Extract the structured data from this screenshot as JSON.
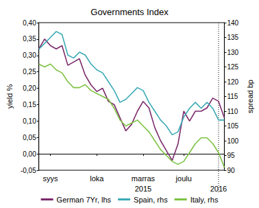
{
  "chart_data": {
    "type": "line",
    "title": "Governments Index",
    "y_label": "yield %",
    "y2_label": "spread bp",
    "categories": [
      null,
      null,
      "syys",
      null,
      null,
      null,
      null,
      null,
      null,
      null,
      "loka",
      null,
      null,
      null,
      null,
      null,
      null,
      null,
      "marras",
      null,
      null,
      null,
      null,
      null,
      null,
      "joulu",
      null,
      null,
      null,
      null,
      null,
      null,
      null
    ],
    "annotations": [
      {
        "text": "2015",
        "at": 18
      },
      {
        "text": "2016",
        "at": 31,
        "line_style": "dotted"
      }
    ],
    "series": [
      {
        "name": "German 7Yr, lhs",
        "color": "#7b2a6b",
        "axis": "y",
        "values": [
          0.32,
          0.35,
          0.33,
          0.32,
          0.33,
          0.27,
          0.28,
          0.29,
          0.24,
          0.21,
          0.19,
          0.2,
          0.16,
          0.15,
          0.11,
          0.07,
          0.09,
          0.13,
          0.16,
          0.14,
          0.08,
          0.04,
          0.01,
          -0.02,
          0.03,
          0.13,
          0.1,
          0.13,
          0.13,
          0.14,
          0.17,
          0.16,
          0.11
        ]
      },
      {
        "name": "Spain, rhs",
        "color": "#3aaab5",
        "axis": "y2",
        "values": [
          131,
          133,
          135,
          137,
          136,
          129,
          128,
          130,
          129,
          126,
          124,
          123,
          120,
          117,
          113,
          114,
          116,
          118,
          117,
          113,
          110,
          107,
          105,
          102,
          103,
          108,
          111,
          113,
          111,
          113,
          111,
          107,
          107
        ]
      },
      {
        "name": "Italy, rhs",
        "color": "#7dc242",
        "axis": "y2",
        "values": [
          126,
          125,
          126,
          124,
          123,
          120,
          118,
          118,
          119,
          117,
          116,
          115,
          114,
          111,
          107,
          105,
          106,
          107,
          105,
          103,
          100,
          97,
          95,
          93,
          92,
          93,
          96,
          99,
          101,
          101,
          99,
          96,
          91
        ]
      }
    ],
    "ylim": [
      -0.05,
      0.4
    ],
    "yticks": [
      {
        "value": -0.05,
        "label": "-0,05"
      },
      {
        "value": 0.0,
        "label": "0,00"
      },
      {
        "value": 0.05,
        "label": "0,05"
      },
      {
        "value": 0.1,
        "label": "0,10"
      },
      {
        "value": 0.15,
        "label": "0,15"
      },
      {
        "value": 0.2,
        "label": "0,20"
      },
      {
        "value": 0.25,
        "label": "0,25"
      },
      {
        "value": 0.3,
        "label": "0,30"
      },
      {
        "value": 0.35,
        "label": "0,35"
      },
      {
        "value": 0.4,
        "label": "0,40"
      }
    ],
    "y2lim": [
      90,
      140
    ],
    "y2ticks": [
      90,
      95,
      100,
      105,
      110,
      115,
      120,
      125,
      130,
      135,
      140
    ],
    "grid": false,
    "legend": "bottom"
  }
}
